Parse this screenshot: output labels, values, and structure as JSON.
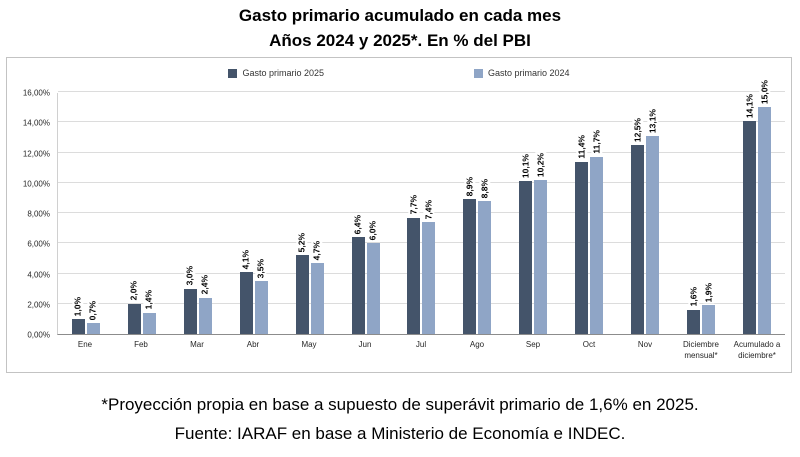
{
  "chart_data": {
    "type": "bar",
    "title": "Gasto primario acumulado en cada mes",
    "subtitle": "Años 2024 y 2025*. En % del PBI",
    "categories": [
      "Ene",
      "Feb",
      "Mar",
      "Abr",
      "May",
      "Jun",
      "Jul",
      "Ago",
      "Sep",
      "Oct",
      "Nov",
      "Diciembre\nmensual*",
      "Acumulado a\ndiciembre*"
    ],
    "series": [
      {
        "name": "Gasto primario 2025",
        "color": "#44546a",
        "values": [
          1.0,
          2.0,
          3.0,
          4.1,
          5.2,
          6.4,
          7.7,
          8.9,
          10.1,
          11.4,
          12.5,
          1.6,
          14.1
        ],
        "labels": [
          "1,0%",
          "2,0%",
          "3,0%",
          "4,1%",
          "5,2%",
          "6,4%",
          "7,7%",
          "8,9%",
          "10,1%",
          "11,4%",
          "12,5%",
          "1,6%",
          "14,1%"
        ]
      },
      {
        "name": "Gasto primario 2024",
        "color": "#8fa5c6",
        "values": [
          0.7,
          1.4,
          2.4,
          3.5,
          4.7,
          6.0,
          7.4,
          8.8,
          10.2,
          11.7,
          13.1,
          1.9,
          15.0
        ],
        "labels": [
          "0,7%",
          "1,4%",
          "2,4%",
          "3,5%",
          "4,7%",
          "6,0%",
          "7,4%",
          "8,8%",
          "10,2%",
          "11,7%",
          "13,1%",
          "1,9%",
          "15,0%"
        ]
      }
    ],
    "ylim": [
      0,
      16
    ],
    "ytick_step": 2,
    "ytick_labels": [
      "0,00%",
      "2,00%",
      "4,00%",
      "6,00%",
      "8,00%",
      "10,00%",
      "12,00%",
      "14,00%",
      "16,00%"
    ],
    "legend_position": "top",
    "grid": "horizontal"
  },
  "footer": {
    "line1": "*Proyección propia en base a supuesto de superávit primario de 1,6% en 2025.",
    "line2": "Fuente: IARAF en base a Ministerio de Economía e INDEC."
  }
}
